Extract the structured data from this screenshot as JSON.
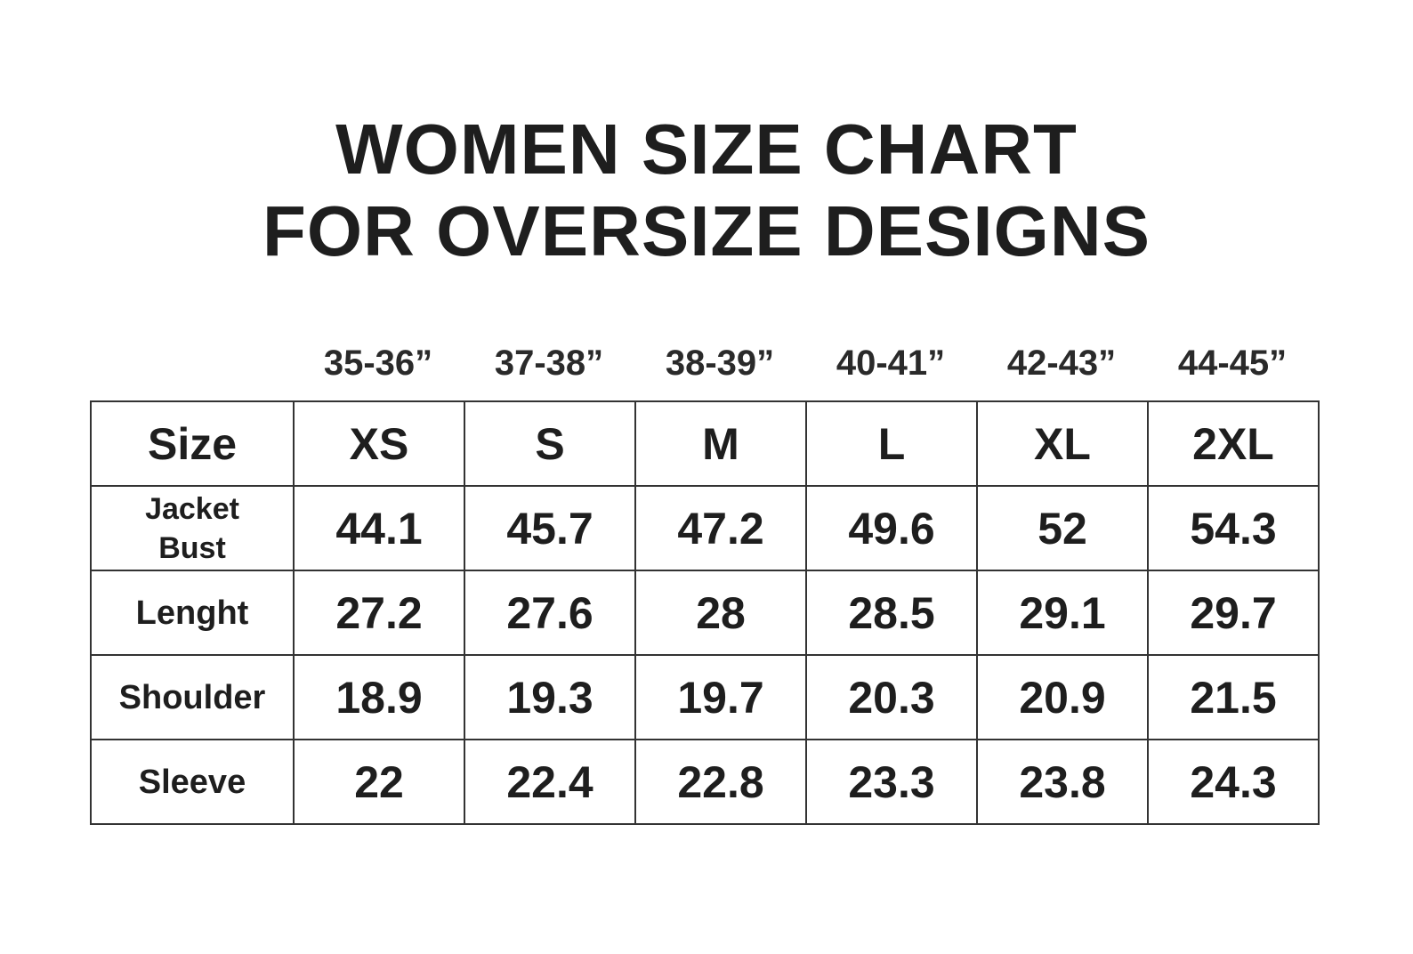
{
  "title_lines": [
    "WOMEN SIZE CHART",
    "FOR OVERSIZE DESIGNS"
  ],
  "chart_data": {
    "type": "table",
    "title": "WOMEN SIZE CHART FOR OVERSIZE DESIGNS",
    "column_ranges": [
      "35-36”",
      "37-38”",
      "38-39”",
      "40-41”",
      "42-43”",
      "44-45”"
    ],
    "header_label": "Size",
    "sizes": [
      "XS",
      "S",
      "M",
      "L",
      "XL",
      "2XL"
    ],
    "rows": [
      {
        "label": "Jacket Bust",
        "label_lines": [
          "Jacket",
          "Bust"
        ],
        "values": [
          "44.1",
          "45.7",
          "47.2",
          "49.6",
          "52",
          "54.3"
        ]
      },
      {
        "label": "Lenght",
        "values": [
          "27.2",
          "27.6",
          "28",
          "28.5",
          "29.1",
          "29.7"
        ]
      },
      {
        "label": "Shoulder",
        "values": [
          "18.9",
          "19.3",
          "19.7",
          "20.3",
          "20.9",
          "21.5"
        ]
      },
      {
        "label": "Sleeve",
        "values": [
          "22",
          "22.4",
          "22.8",
          "23.3",
          "23.8",
          "24.3"
        ]
      }
    ]
  }
}
